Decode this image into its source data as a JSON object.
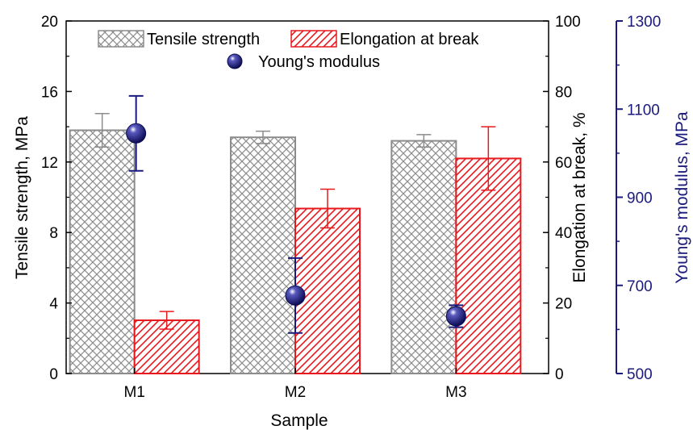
{
  "chart_data": {
    "type": "bar",
    "categories": [
      "M1",
      "M2",
      "M3"
    ],
    "xlabel": "Sample",
    "axes": {
      "left": {
        "label": "Tensile strength, MPa",
        "ylim": [
          0,
          20
        ],
        "ticks": [
          0,
          4,
          8,
          12,
          16,
          20
        ],
        "color": "#000000"
      },
      "right1": {
        "label": "Elongation at break, %",
        "ylim": [
          0,
          100
        ],
        "ticks": [
          0,
          20,
          40,
          60,
          80,
          100
        ],
        "color": "#000000"
      },
      "right2": {
        "label": "Young's modulus, MPa",
        "ylim": [
          500,
          1300
        ],
        "ticks": [
          500,
          700,
          900,
          1100,
          1300
        ],
        "color": "#1a1a7e"
      }
    },
    "series": [
      {
        "name": "Tensile strength",
        "kind": "bar",
        "axis": "left",
        "color": "#8c8c8c",
        "pattern": "crosshatch",
        "values": [
          13.8,
          13.4,
          13.2
        ],
        "errors": [
          0.95,
          0.35,
          0.35
        ]
      },
      {
        "name": "Elongation at break",
        "kind": "bar",
        "axis": "right1",
        "color": "#e8191e",
        "pattern": "diagonal",
        "values": [
          15.1,
          46.8,
          61.0
        ],
        "errors": [
          2.5,
          5.5,
          9.0
        ]
      },
      {
        "name": "Young's modulus",
        "kind": "point",
        "axis": "right2",
        "color": "#1a1a7e",
        "values": [
          1045,
          677,
          630
        ],
        "errors": [
          85,
          85,
          25
        ]
      }
    ],
    "legend": "top-center",
    "grid": false
  }
}
